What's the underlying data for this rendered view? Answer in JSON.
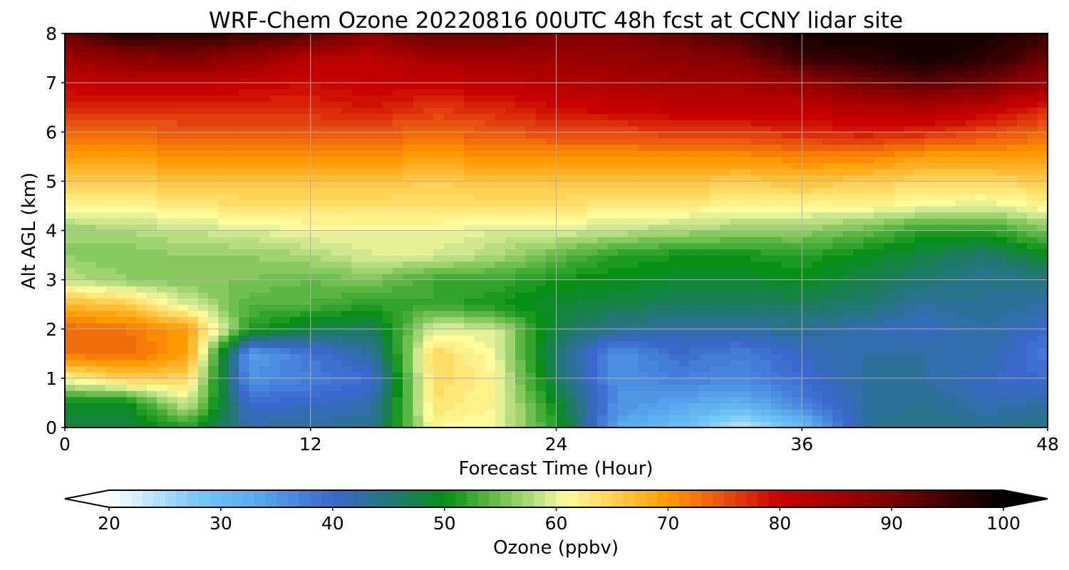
{
  "chart_data": {
    "type": "heatmap",
    "title": "WRF-Chem Ozone  20220816 00UTC 48h fcst at CCNY lidar site",
    "xlabel": "Forecast Time (Hour)",
    "ylabel": "Alt AGL (km)",
    "xlim": [
      0,
      48
    ],
    "ylim": [
      0,
      8
    ],
    "x_ticks": [
      0,
      12,
      24,
      36,
      48
    ],
    "y_ticks": [
      0,
      1,
      2,
      3,
      4,
      5,
      6,
      7,
      8
    ],
    "grid": true,
    "x": [
      0,
      3,
      6,
      9,
      12,
      15,
      18,
      21,
      24,
      27,
      30,
      33,
      36,
      39,
      42,
      45,
      48
    ],
    "y": [
      0,
      0.5,
      1,
      1.5,
      2,
      2.5,
      3,
      3.5,
      4,
      4.5,
      5,
      5.5,
      6,
      6.5,
      7,
      7.5,
      8
    ],
    "z": [
      [
        48,
        48,
        52,
        43,
        44,
        44,
        62,
        61,
        52,
        34,
        30,
        24,
        30,
        44,
        45,
        44,
        45
      ],
      [
        50,
        50,
        60,
        40,
        41,
        42,
        64,
        62,
        50,
        36,
        34,
        32,
        38,
        43,
        44,
        42,
        43
      ],
      [
        62,
        66,
        65,
        36,
        38,
        40,
        65,
        62,
        47,
        36,
        38,
        37,
        40,
        43,
        43,
        41,
        40
      ],
      [
        73,
        74,
        70,
        34,
        39,
        43,
        65,
        61,
        46,
        36,
        40,
        38,
        41,
        43,
        43,
        43,
        38
      ],
      [
        74,
        73,
        70,
        52,
        48,
        47,
        60,
        60,
        48,
        44,
        43,
        43,
        44,
        42,
        41,
        43,
        40
      ],
      [
        68,
        66,
        60,
        54,
        54,
        52,
        53,
        51,
        49,
        48,
        47,
        47,
        47,
        46,
        43,
        44,
        43
      ],
      [
        59,
        57,
        56,
        56,
        55,
        56,
        53,
        53,
        51,
        50,
        49,
        49,
        50,
        48,
        46,
        44,
        45
      ],
      [
        57,
        56,
        57,
        57,
        58,
        60,
        60,
        58,
        55,
        52,
        51,
        51,
        52,
        50,
        48,
        46,
        50
      ],
      [
        57,
        58,
        59,
        60,
        61,
        61,
        61,
        60,
        60,
        59,
        58,
        57,
        57,
        55,
        52,
        52,
        56
      ],
      [
        62,
        62,
        63,
        64,
        64,
        64,
        64,
        64,
        64,
        63,
        63,
        62,
        62,
        62,
        61,
        60,
        62
      ],
      [
        66,
        66,
        67,
        67,
        67,
        67,
        66,
        67,
        67,
        67,
        67,
        66,
        67,
        66,
        65,
        65,
        66
      ],
      [
        70,
        70,
        71,
        71,
        71,
        71,
        70,
        71,
        71,
        71,
        71,
        71,
        72,
        72,
        70,
        70,
        70
      ],
      [
        74,
        74,
        75,
        75,
        75,
        75,
        74,
        75,
        76,
        76,
        77,
        77,
        78,
        79,
        78,
        76,
        74
      ],
      [
        78,
        78,
        78,
        78,
        78,
        79,
        77,
        78,
        80,
        81,
        82,
        82,
        82,
        83,
        84,
        82,
        78
      ],
      [
        81,
        82,
        82,
        81,
        80,
        81,
        81,
        82,
        83,
        84,
        85,
        85,
        87,
        91,
        93,
        91,
        86
      ],
      [
        86,
        88,
        90,
        87,
        83,
        82,
        85,
        86,
        86,
        87,
        88,
        90,
        96,
        97,
        99,
        97,
        92
      ],
      [
        92,
        98,
        96,
        96,
        94,
        88,
        93,
        92,
        90,
        90,
        92,
        95,
        99,
        99,
        99,
        99,
        96
      ]
    ],
    "colorbar": {
      "label": "Ozone  (ppbv)",
      "min": 20,
      "max": 100,
      "ticks": [
        20,
        30,
        40,
        50,
        60,
        70,
        80,
        90,
        100
      ],
      "extend": "both",
      "colors": [
        {
          "v": 20,
          "c": "#ffffff"
        },
        {
          "v": 28,
          "c": "#74c8f4"
        },
        {
          "v": 33,
          "c": "#5aaaee"
        },
        {
          "v": 40,
          "c": "#3a68cc"
        },
        {
          "v": 46,
          "c": "#1f7a68"
        },
        {
          "v": 50,
          "c": "#068f14"
        },
        {
          "v": 55,
          "c": "#70c050"
        },
        {
          "v": 59,
          "c": "#cfe890"
        },
        {
          "v": 61,
          "c": "#fffc9c"
        },
        {
          "v": 65,
          "c": "#ffd255"
        },
        {
          "v": 70,
          "c": "#ff9a00"
        },
        {
          "v": 75,
          "c": "#e85010"
        },
        {
          "v": 80,
          "c": "#c80000"
        },
        {
          "v": 90,
          "c": "#7a0000"
        },
        {
          "v": 100,
          "c": "#000000"
        }
      ]
    }
  }
}
